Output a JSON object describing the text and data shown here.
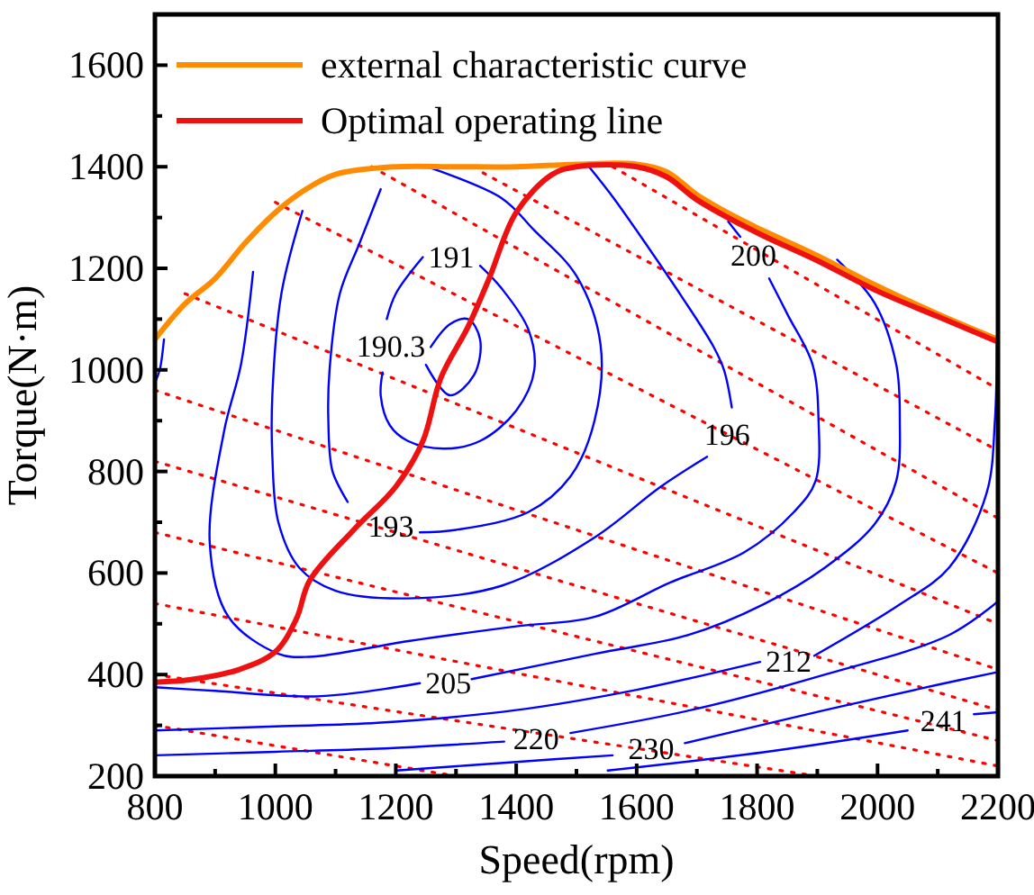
{
  "chart_data": {
    "type": "line",
    "xlabel": "Speed(rpm)",
    "ylabel": "Torque(N·m)",
    "xlim": [
      800,
      2200
    ],
    "ylim": [
      200,
      1700
    ],
    "xticks": [
      800,
      {
        "value": 900,
        "label": null
      },
      1000,
      {
        "value": 1100,
        "label": null
      },
      1200,
      {
        "value": 1300,
        "label": null
      },
      1400,
      {
        "value": 1500,
        "label": null
      },
      1600,
      {
        "value": 1700,
        "label": null
      },
      1800,
      {
        "value": 1900,
        "label": null
      },
      2000,
      {
        "value": 2100,
        "label": null
      },
      2200
    ],
    "yticks": [
      200,
      {
        "value": 300,
        "label": null
      },
      400,
      {
        "value": 500,
        "label": null
      },
      600,
      {
        "value": 700,
        "label": null
      },
      800,
      {
        "value": 900,
        "label": null
      },
      1000,
      {
        "value": 1100,
        "label": null
      },
      1200,
      {
        "value": 1300,
        "label": null
      },
      1400,
      {
        "value": 1500,
        "label": null
      },
      1600
    ],
    "legend": "top left",
    "series": [
      {
        "color": "#ff0000",
        "line_style": "dotted",
        "x": [
          1560,
          2200
        ],
        "values": [
          1400,
          962
        ]
      },
      {
        "color": "#ff0000",
        "line_style": "dotted",
        "x": [
          1345,
          2200
        ],
        "values": [
          1388,
          841
        ]
      },
      {
        "color": "#ff0000",
        "line_style": "dotted",
        "x": [
          1160,
          2200
        ],
        "values": [
          1400,
          708
        ]
      },
      {
        "color": "#ff0000",
        "line_style": "dotted",
        "x": [
          1000,
          2200
        ],
        "values": [
          1330,
          600
        ]
      },
      {
        "color": "#ff0000",
        "line_style": "dotted",
        "x": [
          850,
          2200
        ],
        "values": [
          1150,
          500
        ]
      },
      {
        "color": "#ff0000",
        "line_style": "dotted",
        "x": [
          800,
          2200
        ],
        "values": [
          960,
          410
        ]
      },
      {
        "color": "#ff0000",
        "line_style": "dotted",
        "x": [
          800,
          2200
        ],
        "values": [
          820,
          330
        ]
      },
      {
        "color": "#ff0000",
        "line_style": "dotted",
        "x": [
          800,
          2200
        ],
        "values": [
          680,
          270
        ]
      },
      {
        "color": "#ff0000",
        "line_style": "dotted",
        "x": [
          800,
          2200
        ],
        "values": [
          540,
          220
        ]
      },
      {
        "color": "#ff0000",
        "line_style": "dotted",
        "x": [
          800,
          1900
        ],
        "values": [
          400,
          200
        ]
      },
      {
        "color": "#ff0000",
        "line_style": "dotted",
        "x": [
          800,
          1300
        ],
        "values": [
          300,
          200
        ]
      },
      {
        "color": "#0000ff",
        "x": [
          815,
          808,
          800
        ],
        "values": [
          1060,
          1000,
          975
        ]
      },
      {
        "color": "#0000ff",
        "x": [
          1250,
          1290,
          1330,
          1340,
          1320,
          1290,
          1258
        ],
        "values": [
          1010,
          950,
          990,
          1060,
          1100,
          1090,
          1045
        ]
      },
      {
        "color": "#0000ff",
        "x": [
          1340,
          1376,
          1420,
          1430,
          1400,
          1340,
          1280,
          1220,
          1190,
          1175,
          1178
        ],
        "values": [
          1205,
          1160,
          1080,
          1000,
          920,
          860,
          845,
          860,
          891,
          949,
          995
        ]
      },
      {
        "color": "#0000ff",
        "x": [
          1185,
          1200,
          1245
        ],
        "values": [
          1100,
          1150,
          1222
        ]
      },
      {
        "color": "#0000ff",
        "x": [
          1175,
          1140,
          1107,
          1090,
          1088,
          1095,
          1120
        ],
        "values": [
          1356,
          1250,
          1150,
          1000,
          900,
          800,
          740
        ]
      },
      {
        "color": "#0000ff",
        "x": [
          1240,
          1300,
          1420,
          1490,
          1530,
          1540,
          1500,
          1429,
          1376,
          1252
        ],
        "values": [
          680,
          685,
          720,
          790,
          900,
          1050,
          1185,
          1276,
          1338,
          1400
        ]
      },
      {
        "color": "#0000ff",
        "x": [
          1045,
          1010,
          995,
          995,
          1005,
          1040,
          1100,
          1220,
          1376,
          1530,
          1640,
          1717
        ],
        "values": [
          1313,
          1150,
          950,
          830,
          700,
          610,
          565,
          550,
          575,
          670,
          770,
          829
        ]
      },
      {
        "color": "#0000ff",
        "x": [
          1758,
          1745,
          1727,
          1675,
          1620,
          1562,
          1521
        ],
        "values": [
          926,
          1000,
          1047,
          1144,
          1240,
          1338,
          1400
        ]
      },
      {
        "color": "#0000ff",
        "x": [
          963,
          943,
          915,
          891,
          922,
          1005,
          1056,
          1221,
          1400,
          1531,
          1655,
          1779,
          1861,
          1897,
          1902,
          1892,
          1851,
          1820
        ],
        "values": [
          1193,
          1011,
          880,
          660,
          514,
          441,
          435,
          466,
          495,
          514,
          581,
          641,
          720,
          781,
          902,
          1011,
          1108,
          1180
        ]
      },
      {
        "color": "#0000ff",
        "x": [
          1772,
          1752
        ],
        "values": [
          1262,
          1292
        ]
      },
      {
        "color": "#0000ff",
        "x": [
          800,
          900,
          1066,
          1200,
          1240
        ],
        "values": [
          375,
          368,
          357,
          375,
          383
        ]
      },
      {
        "color": "#0000ff",
        "x": [
          1326,
          1531,
          1686,
          1810,
          1913,
          1995,
          2031,
          2037,
          2031,
          1995,
          1933
        ],
        "values": [
          391,
          441,
          478,
          538,
          611,
          696,
          781,
          902,
          1011,
          1132,
          1217
        ]
      },
      {
        "color": "#0000ff",
        "x": [
          800,
          1000,
          1170,
          1400,
          1600,
          1805
        ],
        "values": [
          290,
          298,
          305,
          330,
          370,
          425
        ]
      },
      {
        "color": "#0000ff",
        "x": [
          1895,
          2037,
          2119,
          2181,
          2195,
          2198
        ],
        "values": [
          437,
          538,
          611,
          757,
          902,
          1050
        ]
      },
      {
        "color": "#0000ff",
        "x": [
          800,
          1000,
          1170,
          1380
        ],
        "values": [
          241,
          248,
          254,
          268
        ]
      },
      {
        "color": "#0000ff",
        "x": [
          1490,
          1690,
          1913,
          2119,
          2200
        ],
        "values": [
          285,
          330,
          400,
          478,
          544
        ]
      },
      {
        "color": "#0000ff",
        "x": [
          1201,
          1400,
          1560
        ],
        "values": [
          211,
          228,
          241
        ]
      },
      {
        "color": "#0000ff",
        "x": [
          1680,
          1913,
          2100,
          2200
        ],
        "values": [
          265,
          330,
          380,
          405
        ]
      },
      {
        "color": "#0000ff",
        "x": [
          1552,
          1810,
          2050
        ],
        "values": [
          211,
          247,
          290
        ]
      },
      {
        "color": "#0000ff",
        "x": [
          2160,
          2200
        ],
        "values": [
          322,
          326
        ]
      },
      {
        "name": "external characteristic curve",
        "color": "#ff8c00",
        "x": [
          800,
          850,
          900,
          950,
          1000,
          1050,
          1100,
          1200,
          1300,
          1400,
          1500,
          1600,
          1650,
          1700,
          1750,
          1800,
          1900,
          2000,
          2100,
          2200
        ],
        "values": [
          1060,
          1130,
          1180,
          1250,
          1310,
          1355,
          1385,
          1400,
          1400,
          1400,
          1405,
          1405,
          1390,
          1345,
          1310,
          1280,
          1225,
          1165,
          1110,
          1060
        ]
      },
      {
        "name": "Optimal operating line",
        "color": "#ee1111",
        "x": [
          800,
          860,
          940,
          1000,
          1035,
          1057,
          1130,
          1200,
          1245,
          1275,
          1320,
          1355,
          1400,
          1460,
          1500,
          1600,
          1650,
          1700,
          1800,
          1900,
          2000,
          2100,
          2200
        ],
        "values": [
          385,
          390,
          410,
          445,
          510,
          585,
          685,
          770,
          860,
          985,
          1085,
          1180,
          1310,
          1385,
          1400,
          1400,
          1380,
          1335,
          1270,
          1215,
          1155,
          1105,
          1055
        ]
      }
    ],
    "annotations": [
      {
        "text": "190.3",
        "x": 1258,
        "y": 1045
      },
      {
        "text": "191",
        "x": 1245,
        "y": 1222
      },
      {
        "text": "193",
        "x": 1192,
        "y": 692
      },
      {
        "text": "196",
        "x": 1750,
        "y": 872
      },
      {
        "text": "200",
        "x": 1794,
        "y": 1225
      },
      {
        "text": "205",
        "x": 1240,
        "y": 383
      },
      {
        "text": "212",
        "x": 1805,
        "y": 425
      },
      {
        "text": "220",
        "x": 1433,
        "y": 272
      },
      {
        "text": "230",
        "x": 1624,
        "y": 254
      },
      {
        "text": "241",
        "x": 2109,
        "y": 308
      }
    ]
  }
}
